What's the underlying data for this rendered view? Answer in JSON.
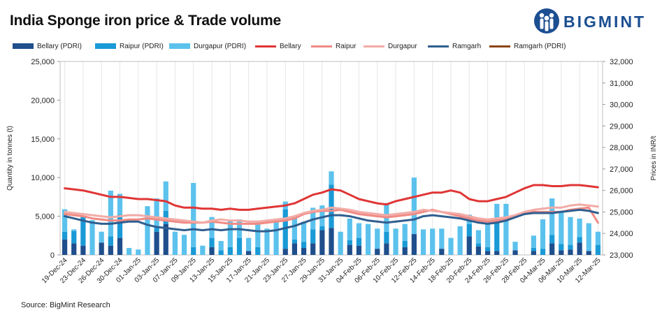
{
  "title": "India Sponge iron price & Trade volume",
  "logo": {
    "text": "BIGMINT",
    "icon": "bigmint-people-icon"
  },
  "source": "Source: BigMint Research",
  "chart_data": {
    "type": "bar+line",
    "title": "India Sponge iron price & Trade volume",
    "ylabel_left": "Quantity in tonnes (t)",
    "ylabel_right": "Prices in INR/t",
    "ylim_left": [
      0,
      25000
    ],
    "ylim_right": [
      23000,
      32000
    ],
    "yticks_left": [
      "0",
      "5,000",
      "10,000",
      "15,000",
      "20,000",
      "25,000"
    ],
    "yticks_right": [
      "23,000",
      "24,000",
      "25,000",
      "26,000",
      "27,000",
      "28,000",
      "29,000",
      "30,000",
      "31,000",
      "32,000"
    ],
    "grid": "vertical",
    "legend_position": "top",
    "x_tick_labels": [
      "19-Dec-24",
      "23-Dec-24",
      "26-Dec-24",
      "30-Dec-24",
      "01-Jan-25",
      "03-Jan-25",
      "07-Jan-25",
      "09-Jan-25",
      "13-Jan-25",
      "15-Jan-25",
      "17-Jan-25",
      "21-Jan-25",
      "23-Jan-25",
      "27-Jan-25",
      "29-Jan-25",
      "31-Jan-25",
      "04-Feb-25",
      "06-Feb-25",
      "10-Feb-25",
      "12-Feb-25",
      "14-Feb-25",
      "18-Feb-25",
      "20-Feb-25",
      "24-Feb-25",
      "26-Feb-25",
      "28-Feb-25",
      "04-Mar-25",
      "06-Mar-25",
      "10-Mar-25",
      "12-Mar-25"
    ],
    "n_points": 59,
    "bar_series": [
      {
        "name": "Bellary (PDRI)",
        "color": "#1f4e8c",
        "values": [
          2000,
          1500,
          1200,
          0,
          1600,
          1200,
          2200,
          0,
          0,
          0,
          3000,
          4000,
          0,
          0,
          0,
          0,
          1000,
          0,
          0,
          0,
          500,
          0,
          0,
          0,
          800,
          1500,
          900,
          1500,
          3200,
          3500,
          0,
          1300,
          1200,
          0,
          800,
          1500,
          0,
          1000,
          2700,
          0,
          0,
          800,
          0,
          0,
          2400,
          1100,
          500,
          500,
          0,
          600,
          0,
          500,
          0,
          1500,
          600,
          700,
          1600,
          500,
          0
        ]
      },
      {
        "name": "Raipur (PDRI)",
        "color": "#1a9ad6",
        "values": [
          1000,
          1600,
          3800,
          0,
          0,
          1200,
          3000,
          0,
          0,
          0,
          500,
          1700,
          0,
          0,
          1000,
          0,
          1200,
          600,
          1000,
          2200,
          0,
          1000,
          0,
          0,
          5100,
          500,
          800,
          1800,
          500,
          5600,
          0,
          600,
          1000,
          0,
          0,
          1500,
          0,
          800,
          0,
          0,
          0,
          0,
          0,
          0,
          1600,
          400,
          500,
          3600,
          0,
          0,
          0,
          400,
          800,
          1100,
          800,
          600,
          700,
          0,
          1300
        ]
      },
      {
        "name": "Durgapur (PDRI)",
        "color": "#5cc2ed",
        "values": [
          2900,
          200,
          0,
          4500,
          1400,
          5900,
          2700,
          900,
          700,
          6300,
          3800,
          3800,
          3000,
          2600,
          8300,
          1200,
          2700,
          1200,
          3400,
          2400,
          1700,
          3200,
          3400,
          4500,
          1000,
          3000,
          2600,
          2800,
          2700,
          1700,
          3000,
          2800,
          1900,
          4000,
          2600,
          3700,
          3400,
          2200,
          7300,
          3300,
          3400,
          2600,
          2200,
          3700,
          1200,
          1700,
          3000,
          2500,
          6600,
          1100,
          0,
          1600,
          3800,
          4700,
          4200,
          3600,
          2400,
          3600,
          1700
        ]
      }
    ],
    "line_series": [
      {
        "name": "Bellary",
        "color": "#e03535",
        "values": [
          26100,
          26050,
          26000,
          25900,
          25800,
          25700,
          25700,
          25650,
          25600,
          25600,
          25550,
          25500,
          25300,
          25200,
          25200,
          25150,
          25150,
          25100,
          25150,
          25100,
          25100,
          25150,
          25200,
          25250,
          25300,
          25400,
          25600,
          25800,
          25900,
          26050,
          26000,
          25800,
          25600,
          25500,
          25400,
          25350,
          25500,
          25600,
          25700,
          25800,
          25900,
          25900,
          26000,
          25900,
          25600,
          25500,
          25500,
          25600,
          25700,
          25900,
          26100,
          26250,
          26250,
          26200,
          26200,
          26250,
          26250,
          26200,
          26150
        ]
      },
      {
        "name": "Raipur",
        "color": "#f08a84",
        "values": [
          24900,
          24850,
          24800,
          24700,
          24650,
          24600,
          24600,
          24650,
          24650,
          24700,
          24650,
          24600,
          24550,
          24500,
          24500,
          24500,
          24550,
          24500,
          24450,
          24450,
          24450,
          24450,
          24500,
          24550,
          24600,
          24700,
          24900,
          25000,
          25050,
          25050,
          25100,
          25000,
          24900,
          24850,
          24800,
          24750,
          24800,
          24850,
          24900,
          25000,
          25100,
          25000,
          24900,
          24800,
          24700,
          24600,
          24550,
          24600,
          24650,
          24800,
          24950,
          25000,
          25000,
          25000,
          25000,
          25100,
          25150,
          25200,
          24500
        ]
      },
      {
        "name": "Durgapur",
        "color": "#f2aba6",
        "values": [
          25000,
          24950,
          24900,
          24850,
          24800,
          24750,
          24800,
          24850,
          24850,
          24800,
          24750,
          24700,
          24650,
          24600,
          24550,
          24500,
          24600,
          24650,
          24600,
          24600,
          24550,
          24550,
          24600,
          24650,
          24700,
          24800,
          24950,
          25050,
          25100,
          25200,
          25150,
          25100,
          25000,
          24950,
          24900,
          24850,
          24900,
          24950,
          25000,
          25100,
          25050,
          25000,
          24950,
          24900,
          24800,
          24700,
          24650,
          24700,
          24750,
          24850,
          25000,
          25100,
          25150,
          25200,
          25200,
          25300,
          25350,
          25300,
          25250
        ]
      },
      {
        "name": "Ramgarh",
        "color": "#2f5e8f",
        "values": [
          24800,
          24700,
          24600,
          24500,
          24450,
          24450,
          24500,
          24550,
          24550,
          24400,
          24300,
          24250,
          24200,
          24150,
          24200,
          24150,
          24200,
          24150,
          24200,
          24200,
          24150,
          24100,
          24100,
          24150,
          24250,
          24350,
          24500,
          24650,
          24750,
          24850,
          24850,
          24800,
          24700,
          24600,
          24550,
          24500,
          24550,
          24600,
          24650,
          24800,
          24850,
          24800,
          24750,
          24700,
          24600,
          24500,
          24450,
          24500,
          24600,
          24750,
          24900,
          24950,
          24950,
          24950,
          25000,
          25050,
          25100,
          25050,
          24950
        ]
      },
      {
        "name": "Ramgarh (PDRI)",
        "color": "#8b4513",
        "values": []
      }
    ]
  }
}
